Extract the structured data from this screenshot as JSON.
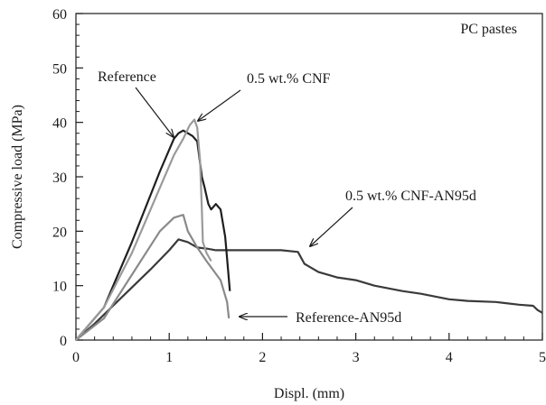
{
  "chart_data": {
    "type": "line",
    "title": "",
    "xlabel": "Displ. (mm)",
    "ylabel": "Compressive load (MPa)",
    "xlim": [
      0,
      5
    ],
    "ylim": [
      0,
      60
    ],
    "x_ticks": [
      0,
      1,
      2,
      3,
      4,
      5
    ],
    "y_ticks": [
      0,
      10,
      20,
      30,
      40,
      50,
      60
    ],
    "x_tick_labels": [
      "0",
      "1",
      "2",
      "3",
      "4",
      "5"
    ],
    "y_tick_labels": [
      "0",
      "10",
      "20",
      "30",
      "40",
      "50",
      "60"
    ],
    "grid": false,
    "legend": "none",
    "corner_label": "PC pastes",
    "series": [
      {
        "name": "0.5 wt.% CNF-AN95d",
        "color": "#3a3a3a",
        "x": [
          0,
          0.2,
          0.5,
          0.8,
          1.0,
          1.1,
          1.2,
          1.3,
          1.4,
          1.5,
          1.7,
          2.0,
          2.2,
          2.38,
          2.45,
          2.5,
          2.6,
          2.8,
          3.0,
          3.2,
          3.5,
          3.7,
          4.0,
          4.2,
          4.5,
          4.6,
          4.75,
          4.9,
          4.95,
          5.0
        ],
        "y": [
          0,
          3,
          8,
          13,
          16.5,
          18.5,
          18.0,
          17.0,
          16.8,
          16.5,
          16.5,
          16.5,
          16.5,
          16.2,
          14.0,
          13.5,
          12.5,
          11.5,
          11.0,
          10.0,
          9.0,
          8.5,
          7.5,
          7.2,
          7.0,
          6.8,
          6.5,
          6.3,
          5.5,
          5.0
        ]
      },
      {
        "name": "Reference-AN95d",
        "color": "#8a8a8a",
        "x": [
          0,
          0.3,
          0.6,
          0.9,
          1.05,
          1.15,
          1.2,
          1.3,
          1.4,
          1.55,
          1.62,
          1.64
        ],
        "y": [
          0,
          4,
          12,
          20,
          22.5,
          23.0,
          20.0,
          17.0,
          14.5,
          11.0,
          7.0,
          4.0
        ]
      },
      {
        "name": "Reference",
        "color": "#1f1f1f",
        "x": [
          0,
          0.3,
          0.6,
          0.9,
          1.05,
          1.1,
          1.15,
          1.2,
          1.25,
          1.3,
          1.32,
          1.35,
          1.38,
          1.42,
          1.45,
          1.5,
          1.55,
          1.6,
          1.62,
          1.65
        ],
        "y": [
          0,
          6,
          18,
          31,
          37,
          38,
          38.5,
          38,
          37.5,
          36.5,
          34,
          30,
          28,
          25,
          24,
          25,
          24,
          19,
          15,
          9
        ]
      },
      {
        "name": "0.5 wt.% CNF",
        "color": "#9a9a9a",
        "x": [
          0,
          0.3,
          0.6,
          0.9,
          1.05,
          1.15,
          1.22,
          1.27,
          1.3,
          1.33,
          1.35,
          1.36,
          1.4,
          1.45
        ],
        "y": [
          0,
          6,
          16,
          28,
          34,
          37,
          39.5,
          40.5,
          39,
          33,
          24,
          18,
          16,
          14.5
        ]
      }
    ],
    "annotations": [
      {
        "text": "Reference",
        "target": "Reference"
      },
      {
        "text": "0.5 wt.% CNF",
        "target": "0.5 wt.% CNF"
      },
      {
        "text": "0.5 wt.% CNF-AN95d",
        "target": "0.5 wt.% CNF-AN95d"
      },
      {
        "text": "Reference-AN95d",
        "target": "Reference-AN95d"
      }
    ]
  }
}
